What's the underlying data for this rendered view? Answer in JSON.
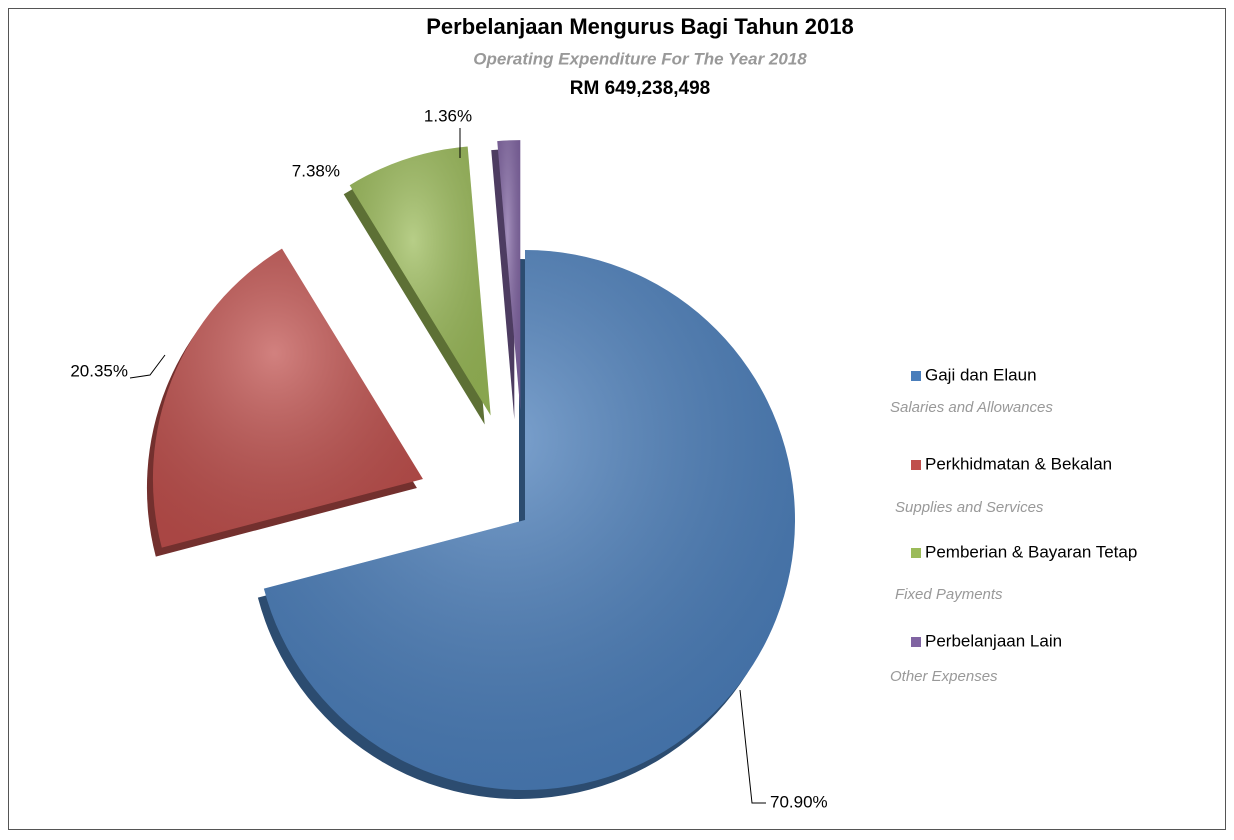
{
  "chart_data": {
    "type": "pie",
    "title": "Perbelanjaan Mengurus Bagi Tahun 2018",
    "subtitle": "Operating Expenditure For The Year 2018",
    "total": "RM 649,238,498",
    "categories": [
      "Gaji dan Elaun",
      "Perkhidmatan & Bekalan",
      "Pemberian & Bayaran Tetap",
      "Perbelanjaan Lain"
    ],
    "category_translations": [
      "Salaries and Allowances",
      "Supplies and Services",
      "Fixed Payments",
      "Other Expenses"
    ],
    "values": [
      70.9,
      20.35,
      7.38,
      1.36
    ],
    "value_labels": [
      "70.90%",
      "20.35%",
      "7.38%",
      "1.36%"
    ],
    "colors": [
      "#4a7ebb",
      "#c0504d",
      "#9bbb59",
      "#8064a2"
    ]
  }
}
